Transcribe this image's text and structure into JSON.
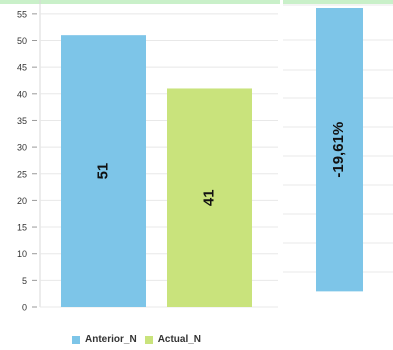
{
  "chart_data": [
    {
      "type": "bar",
      "categories": [
        "Anterior_N",
        "Actual_N"
      ],
      "values": [
        51,
        41
      ],
      "data_labels": [
        "51",
        "41"
      ],
      "colors": [
        "#7dc5e8",
        "#c9e37c"
      ],
      "ylim": [
        0,
        57
      ],
      "yticks": [
        0,
        5,
        10,
        15,
        20,
        25,
        30,
        35,
        40,
        45,
        50,
        55
      ],
      "ytick_labels": [
        "0",
        "5",
        "10",
        "15",
        "20",
        "25",
        "30",
        "35",
        "40",
        "45",
        "50",
        "55"
      ],
      "grid": true,
      "legend": {
        "placement": "bottom",
        "entries": [
          {
            "label": "Anterior_N",
            "color": "#7dc5e8"
          },
          {
            "label": "Actual_N",
            "color": "#c9e37c"
          }
        ]
      }
    },
    {
      "type": "bar",
      "categories": [
        ""
      ],
      "values": [
        -19.61
      ],
      "data_labels": [
        "-19,61%"
      ],
      "colors": [
        "#7dc5e8"
      ],
      "ylim": [
        -20,
        0
      ],
      "grid": true
    }
  ]
}
